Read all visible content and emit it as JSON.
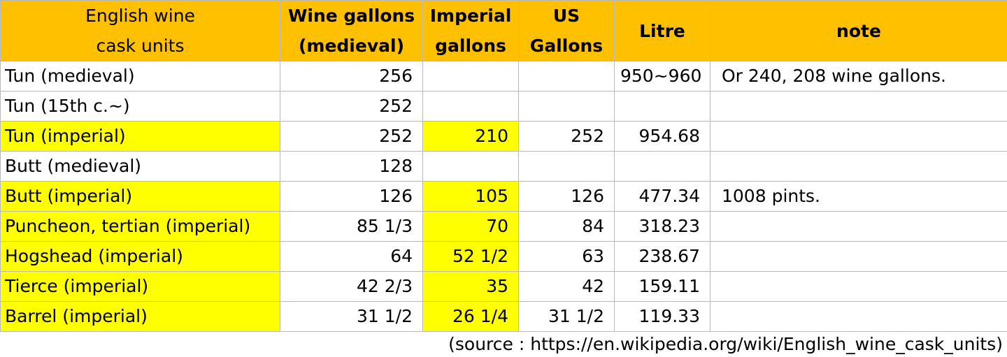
{
  "chart_data": {
    "type": "table",
    "columns": [
      "English wine cask units",
      "Wine gallons (medieval)",
      "Imperial gallons",
      "US Gallons",
      "Litre",
      "note"
    ],
    "header_lines": [
      [
        "English wine",
        "cask units"
      ],
      [
        "Wine gallons",
        "(medieval)"
      ],
      [
        "Imperial",
        "gallons"
      ],
      [
        "US",
        "Gallons"
      ],
      [
        "Litre"
      ],
      [
        "note"
      ]
    ],
    "rows": [
      {
        "name": "Tun (medieval)",
        "wine_gallons": "256",
        "imperial_gallons": "",
        "us_gallons": "",
        "litre": "950~960",
        "note": "Or 240, 208 wine gallons.",
        "highlight": false
      },
      {
        "name": "Tun (15th c.~)",
        "wine_gallons": "252",
        "imperial_gallons": "",
        "us_gallons": "",
        "litre": "",
        "note": "",
        "highlight": false
      },
      {
        "name": "Tun (imperial)",
        "wine_gallons": "252",
        "imperial_gallons": "210",
        "us_gallons": "252",
        "litre": "954.68",
        "note": "",
        "highlight": true
      },
      {
        "name": "Butt (medieval)",
        "wine_gallons": "128",
        "imperial_gallons": "",
        "us_gallons": "",
        "litre": "",
        "note": "",
        "highlight": false
      },
      {
        "name": "Butt (imperial)",
        "wine_gallons": "126",
        "imperial_gallons": "105",
        "us_gallons": "126",
        "litre": "477.34",
        "note": "1008 pints.",
        "highlight": true
      },
      {
        "name": "Puncheon, tertian (imperial)",
        "wine_gallons": "85 1/3",
        "imperial_gallons": "70",
        "us_gallons": "84",
        "litre": "318.23",
        "note": "",
        "highlight": true
      },
      {
        "name": "Hogshead (imperial)",
        "wine_gallons": "64",
        "imperial_gallons": "52 1/2",
        "us_gallons": "63",
        "litre": "238.67",
        "note": "",
        "highlight": true
      },
      {
        "name": "Tierce (imperial)",
        "wine_gallons": "42 2/3",
        "imperial_gallons": "35",
        "us_gallons": "42",
        "litre": "159.11",
        "note": "",
        "highlight": true
      },
      {
        "name": "Barrel (imperial)",
        "wine_gallons": "31 1/2",
        "imperial_gallons": "26 1/4",
        "us_gallons": "31 1/2",
        "litre": "119.33",
        "note": "",
        "highlight": true
      }
    ],
    "colors": {
      "header": "#ffc000",
      "highlight": "#ffff00",
      "border": "#b9b9b9"
    }
  },
  "source_text": "(source : https://en.wikipedia.org/wiki/English_wine_cask_units)"
}
